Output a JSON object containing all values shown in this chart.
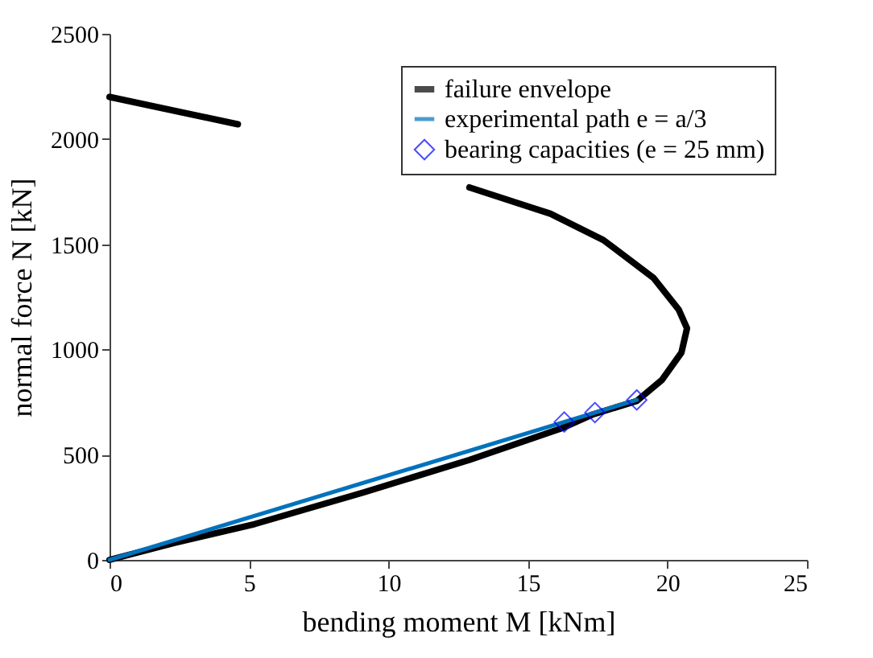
{
  "chart_data": {
    "type": "line",
    "xlabel": "bending moment M [kNm]",
    "ylabel": "normal force N [kN]",
    "xlim": [
      0,
      25
    ],
    "ylim": [
      0,
      2500
    ],
    "xticks": [
      0,
      5,
      10,
      15,
      20,
      25
    ],
    "yticks": [
      0,
      500,
      1000,
      1500,
      2000,
      2500
    ],
    "legend": "top right",
    "grid": false,
    "series": [
      {
        "name": "failure envelope",
        "color": "#000000",
        "x": [
          0,
          4.6,
          8.5,
          12.9,
          15.8,
          17.7,
          19.5,
          20.4,
          20.7,
          20.5,
          19.8,
          18.9,
          17.3,
          16.2,
          12.9,
          9.1,
          5.2,
          2.3,
          0
        ],
        "values": [
          2200,
          2070,
          null,
          1770,
          1645,
          1520,
          1340,
          1190,
          1100,
          985,
          855,
          755,
          690,
          625,
          475,
          320,
          170,
          80,
          0
        ]
      },
      {
        "name": "experimental path e = a/3",
        "color": "#0072bd",
        "x": [
          0,
          18.9
        ],
        "values": [
          0,
          760
        ]
      },
      {
        "name": "bearing capacities (e = 25 mm)",
        "color": "#0000ff",
        "type": "scatter",
        "marker": "diamond",
        "x": [
          16.3,
          17.4,
          18.9
        ],
        "values": [
          655,
          700,
          760
        ]
      }
    ]
  }
}
